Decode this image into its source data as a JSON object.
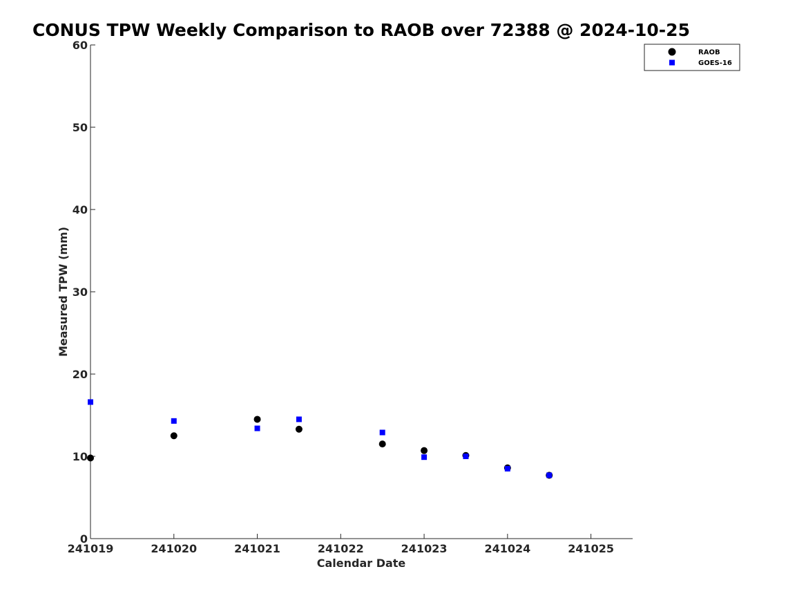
{
  "chart_data": {
    "type": "scatter",
    "title": "CONUS TPW Weekly Comparison to RAOB over 72388 @ 2024-10-25",
    "xlabel": "Calendar Date",
    "ylabel": "Measured TPW (mm)",
    "xlim": [
      241019,
      241025.5
    ],
    "ylim": [
      0,
      60
    ],
    "x_ticks": [
      241019,
      241020,
      241021,
      241022,
      241023,
      241024,
      241025
    ],
    "x_tick_labels": [
      "241019",
      "241020",
      "241021",
      "241022",
      "241023",
      "241024",
      "241025"
    ],
    "y_ticks": [
      0,
      10,
      20,
      30,
      40,
      50,
      60
    ],
    "y_tick_labels": [
      "0",
      "10",
      "20",
      "30",
      "40",
      "50",
      "60"
    ],
    "grid": false,
    "legend_position": "top-right",
    "series": [
      {
        "name": "RAOB",
        "marker": "circle",
        "color": "#000000",
        "x": [
          241019,
          241020,
          241021,
          241021.5,
          241022.5,
          241023,
          241023.5,
          241024,
          241024.5
        ],
        "y": [
          9.8,
          12.5,
          14.5,
          13.3,
          11.5,
          10.7,
          10.1,
          8.6,
          7.7
        ]
      },
      {
        "name": "GOES-16",
        "marker": "square",
        "color": "#0000ff",
        "x": [
          241019,
          241020,
          241021,
          241021.5,
          241022.5,
          241023,
          241023.5,
          241024,
          241024.5
        ],
        "y": [
          16.6,
          14.3,
          13.4,
          14.5,
          12.9,
          9.9,
          10.0,
          8.5,
          7.7
        ]
      }
    ]
  }
}
